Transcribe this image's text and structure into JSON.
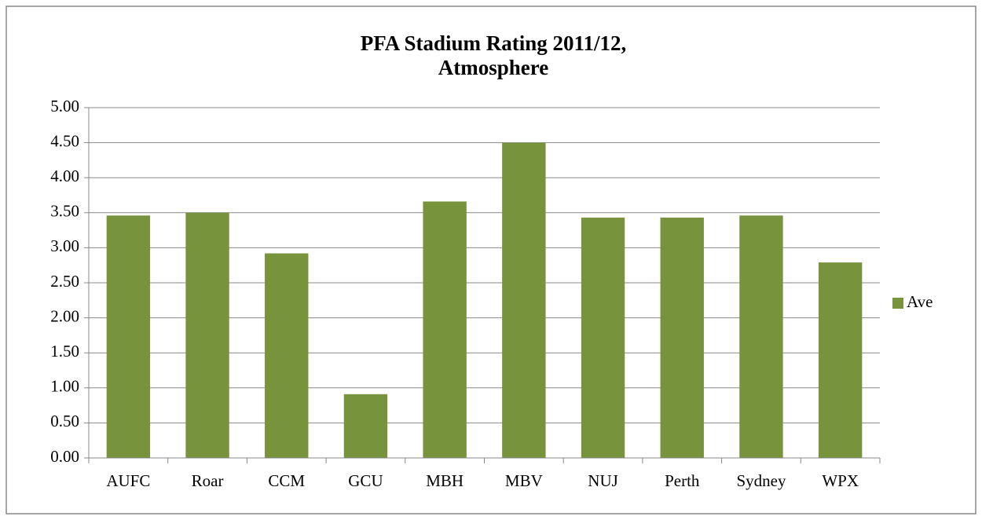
{
  "chart_data": {
    "type": "bar",
    "title": [
      "PFA Stadium Rating 2011/12,",
      "Atmosphere"
    ],
    "categories": [
      "AUFC",
      "Roar",
      "CCM",
      "GCU",
      "MBH",
      "MBV",
      "NUJ",
      "Perth",
      "Sydney",
      "WPX"
    ],
    "series": [
      {
        "name": "Ave",
        "color": "#77933c",
        "values": [
          3.46,
          3.5,
          2.92,
          0.91,
          3.66,
          4.5,
          3.43,
          3.43,
          3.46,
          2.79
        ]
      }
    ],
    "ylim": [
      0,
      5
    ],
    "yticks": [
      {
        "value": 0,
        "label": "0.00"
      },
      {
        "value": 0.5,
        "label": "0.50"
      },
      {
        "value": 1,
        "label": "1.00"
      },
      {
        "value": 1.5,
        "label": "1.50"
      },
      {
        "value": 2,
        "label": "2.00"
      },
      {
        "value": 2.5,
        "label": "2.50"
      },
      {
        "value": 3,
        "label": "3.00"
      },
      {
        "value": 3.5,
        "label": "3.50"
      },
      {
        "value": 4,
        "label": "4.00"
      },
      {
        "value": 4.5,
        "label": "4.50"
      },
      {
        "value": 5,
        "label": "5.00"
      }
    ],
    "grid": true,
    "legend": "right"
  }
}
